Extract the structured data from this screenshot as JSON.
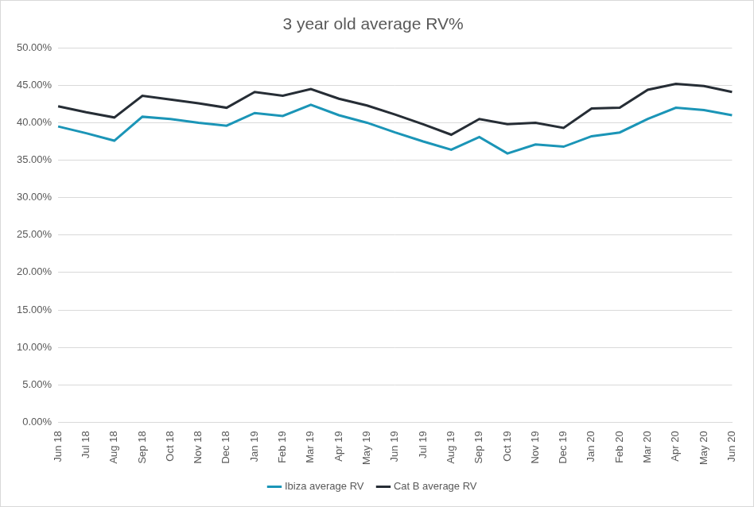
{
  "chart_data": {
    "type": "line",
    "title": "3 year old average RV%",
    "categories": [
      "Jun 18",
      "Jul 18",
      "Aug 18",
      "Sep 18",
      "Oct 18",
      "Nov 18",
      "Dec 18",
      "Jan 19",
      "Feb 19",
      "Mar 19",
      "Apr 19",
      "May 19",
      "Jun 19",
      "Jul 19",
      "Aug 19",
      "Sep 19",
      "Oct 19",
      "Nov 19",
      "Dec 19",
      "Jan 20",
      "Feb 20",
      "Mar 20",
      "Apr 20",
      "May 20",
      "Jun 20"
    ],
    "series": [
      {
        "name": "Ibiza average RV",
        "color": "#1b95b7",
        "values": [
          39.5,
          38.6,
          37.6,
          40.8,
          40.5,
          40.0,
          39.6,
          41.3,
          40.9,
          42.4,
          41.0,
          40.0,
          38.7,
          37.5,
          36.4,
          38.1,
          35.9,
          37.1,
          36.8,
          38.2,
          38.7,
          40.5,
          42.0,
          41.7,
          41.0
        ]
      },
      {
        "name": "Cat B average RV",
        "color": "#262d35",
        "values": [
          42.2,
          41.4,
          40.7,
          43.6,
          43.1,
          42.6,
          42.0,
          44.1,
          43.6,
          44.5,
          43.2,
          42.3,
          41.1,
          39.8,
          38.4,
          40.5,
          39.8,
          40.0,
          39.3,
          41.9,
          42.0,
          44.4,
          45.2,
          44.9,
          44.1
        ]
      }
    ],
    "ylim": [
      0,
      50
    ],
    "yticks": [
      {
        "value": 0,
        "label": "0.00%"
      },
      {
        "value": 5,
        "label": "5.00%"
      },
      {
        "value": 10,
        "label": "10.00%"
      },
      {
        "value": 15,
        "label": "15.00%"
      },
      {
        "value": 20,
        "label": "20.00%"
      },
      {
        "value": 25,
        "label": "25.00%"
      },
      {
        "value": 30,
        "label": "30.00%"
      },
      {
        "value": 35,
        "label": "35.00%"
      },
      {
        "value": 40,
        "label": "40.00%"
      },
      {
        "value": 45,
        "label": "45.00%"
      },
      {
        "value": 50,
        "label": "50.00%"
      }
    ],
    "grid": true,
    "legend": "bottom"
  }
}
